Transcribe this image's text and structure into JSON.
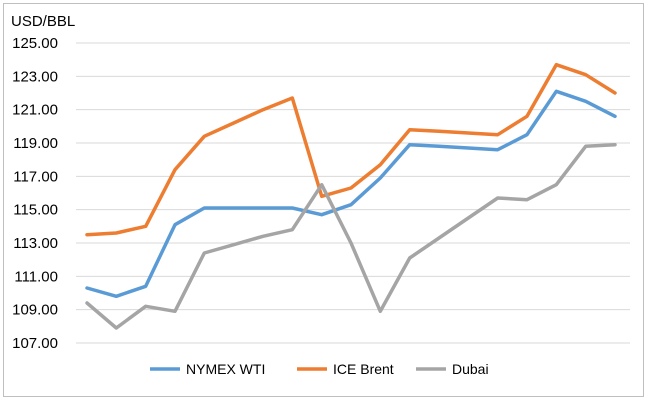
{
  "chart_data": {
    "type": "line",
    "unit_label": "USD/BBL",
    "ylim": [
      107,
      125
    ],
    "y_ticks": [
      "125.00",
      "123.00",
      "121.00",
      "119.00",
      "117.00",
      "115.00",
      "113.00",
      "111.00",
      "109.00",
      "107.00"
    ],
    "grid": true,
    "legend_position": "bottom",
    "x": [
      1,
      2,
      3,
      4,
      5,
      6,
      7,
      8,
      9,
      10,
      11,
      12,
      13,
      14,
      15,
      16,
      17,
      18,
      19
    ],
    "series": [
      {
        "name": "NYMEX WTI",
        "color": "#5b9bd5",
        "values": [
          110.3,
          109.8,
          110.4,
          114.1,
          115.1,
          115.1,
          115.1,
          115.1,
          114.7,
          115.3,
          116.9,
          118.9,
          118.8,
          118.7,
          118.6,
          119.5,
          122.1,
          121.5,
          120.6
        ]
      },
      {
        "name": "ICE Brent",
        "color": "#ed7d31",
        "values": [
          113.5,
          113.6,
          114.0,
          117.4,
          119.4,
          120.2,
          121.0,
          121.7,
          115.8,
          116.3,
          117.7,
          119.8,
          119.7,
          119.6,
          119.5,
          120.6,
          123.7,
          123.1,
          122.0
        ]
      },
      {
        "name": "Dubai",
        "color": "#a5a5a5",
        "values": [
          109.4,
          107.9,
          109.2,
          108.9,
          112.4,
          112.9,
          113.4,
          113.8,
          116.5,
          113.0,
          108.9,
          112.1,
          113.3,
          114.5,
          115.7,
          115.6,
          116.5,
          118.8,
          118.9
        ]
      }
    ]
  }
}
